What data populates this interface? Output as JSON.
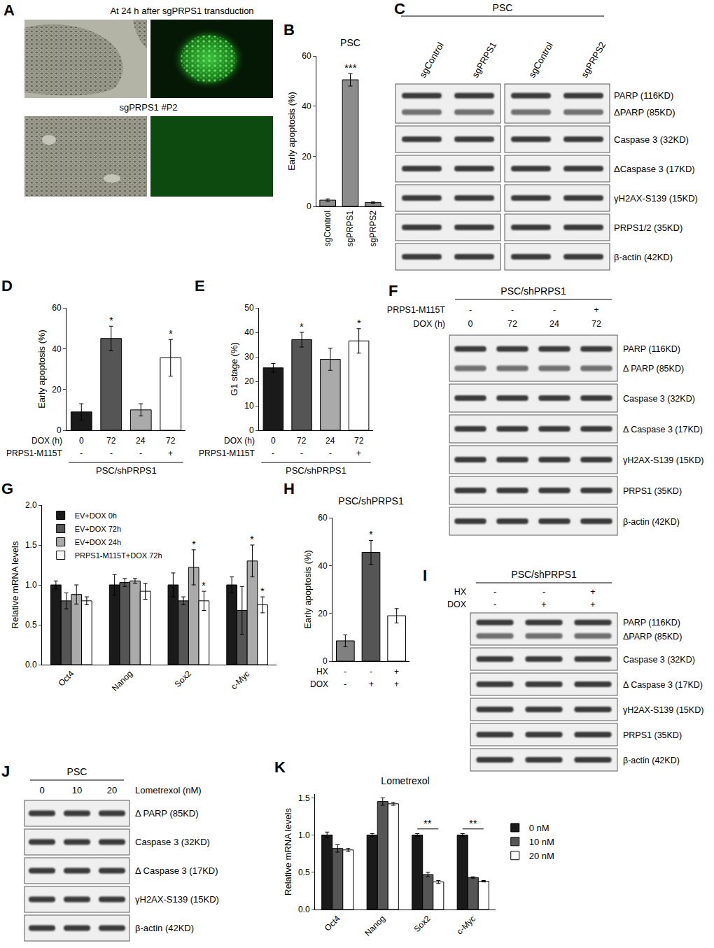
{
  "chart_data": [
    {
      "letter": "B",
      "type": "bar",
      "title": "PSC",
      "y_label": "Early apoptosis (%)",
      "categories": [
        "sgControl",
        "sgPRPS1",
        "sgPRPS2"
      ],
      "values": [
        2.5,
        50.5,
        1.5
      ],
      "errors": [
        0.5,
        2.5,
        0.3
      ],
      "colors": [
        "#8c8c8c",
        "#8c8c8c",
        "#8c8c8c"
      ],
      "significance": [
        null,
        "***",
        null
      ],
      "ylim": [
        0,
        60
      ],
      "yticks": [
        0,
        20,
        40,
        60
      ]
    },
    {
      "letter": "D",
      "type": "bar",
      "y_label": "Early apoptosis (%)",
      "x_rows": [
        {
          "label": "DOX (h)",
          "values": [
            "0",
            "72",
            "24",
            "72"
          ]
        },
        {
          "label": "PRPS1-M115T",
          "values": [
            "-",
            "-",
            "-",
            "+"
          ]
        }
      ],
      "group_label": "PSC/shPRPS1",
      "values": [
        9,
        45,
        10,
        35.5
      ],
      "errors": [
        4,
        6,
        3,
        9
      ],
      "colors": [
        "#1a1a1a",
        "#555555",
        "#aaaaaa",
        "#ffffff"
      ],
      "significance": [
        null,
        "*",
        null,
        "*"
      ],
      "ylim": [
        0,
        60
      ],
      "yticks": [
        0,
        20,
        40,
        60
      ],
      "tick_labels": "y"
    },
    {
      "letter": "E",
      "type": "bar",
      "y_label": "G1 stage (%)",
      "x_rows": [
        {
          "label": "DOX (h)",
          "values": [
            "0",
            "72",
            "24",
            "72"
          ]
        },
        {
          "label": "PRPS1-M115T",
          "values": [
            "-",
            "-",
            "-",
            "+"
          ]
        }
      ],
      "group_label": "PSC/shPRPS1",
      "values": [
        25.5,
        37,
        29,
        36.5
      ],
      "errors": [
        1.8,
        3,
        4.5,
        5
      ],
      "colors": [
        "#1a1a1a",
        "#555555",
        "#aaaaaa",
        "#ffffff"
      ],
      "significance": [
        null,
        "*",
        null,
        "*"
      ],
      "ylim": [
        0,
        50
      ],
      "yticks": [
        0,
        10,
        20,
        30,
        40,
        50
      ],
      "tick_labels": "y"
    },
    {
      "letter": "G",
      "type": "bar",
      "y_label": "Relative mRNA levels",
      "categories": [
        "Oct4",
        "Nanog",
        "Sox2",
        "c-Myc"
      ],
      "series": [
        {
          "name": "EV+DOX 0h",
          "color": "#1a1a1a",
          "values": [
            1.0,
            1.0,
            1.0,
            1.0
          ],
          "errors": [
            0.05,
            0.13,
            0.15,
            0.1
          ]
        },
        {
          "name": "EV+DOX 72h",
          "color": "#555555",
          "values": [
            0.8,
            1.03,
            0.8,
            0.68
          ],
          "errors": [
            0.1,
            0.05,
            0.05,
            0.3
          ]
        },
        {
          "name": "EV+DOX 24h",
          "color": "#aaaaaa",
          "values": [
            0.88,
            1.05,
            1.22,
            1.3
          ],
          "errors": [
            0.12,
            0.03,
            0.22,
            0.2
          ],
          "significance": [
            null,
            null,
            "*",
            "*"
          ]
        },
        {
          "name": "PRPS1-M115T+DOX 72h",
          "color": "#ffffff",
          "values": [
            0.8,
            0.92,
            0.8,
            0.75
          ],
          "errors": [
            0.05,
            0.1,
            0.12,
            0.1
          ],
          "significance": [
            null,
            null,
            "*",
            "*"
          ]
        }
      ],
      "ylim": [
        0,
        2
      ],
      "yticks": [
        {
          "value": 0,
          "label": "0.0"
        },
        {
          "value": 0.5,
          "label": "0.5"
        },
        {
          "value": 1,
          "label": "1.0"
        },
        {
          "value": 1.5,
          "label": "1.5"
        },
        {
          "value": 2,
          "label": "2.0"
        }
      ],
      "legend": "top-left"
    },
    {
      "letter": "H",
      "type": "bar",
      "title": "PSC/shPRPS1",
      "y_label": "Early apoptosis (%)",
      "x_rows": [
        {
          "label": "HX",
          "values": [
            "-",
            "-",
            "+"
          ]
        },
        {
          "label": "DOX",
          "values": [
            "-",
            "+",
            "+"
          ]
        }
      ],
      "values": [
        8.5,
        45.5,
        19
      ],
      "errors": [
        2.5,
        5,
        3
      ],
      "colors": [
        "#808080",
        "#555555",
        "#ffffff"
      ],
      "significance": [
        null,
        "*",
        null
      ],
      "ylim": [
        0,
        60
      ],
      "yticks": [
        0,
        20,
        40,
        60
      ],
      "tick_labels": "y"
    },
    {
      "letter": "K",
      "type": "bar",
      "title": "Lometrexol",
      "y_label": "Relative mRNA levels",
      "categories": [
        "Oct4",
        "Nanog",
        "Sox2",
        "c-Myc"
      ],
      "series": [
        {
          "name": "0 nM",
          "color": "#1a1a1a",
          "values": [
            1.0,
            1.0,
            1.0,
            1.0
          ],
          "errors": [
            0.04,
            0.02,
            0.02,
            0.02
          ]
        },
        {
          "name": "10 nM",
          "color": "#555555",
          "values": [
            0.82,
            1.45,
            0.47,
            0.43
          ],
          "errors": [
            0.05,
            0.05,
            0.03,
            0.01
          ]
        },
        {
          "name": "20 nM",
          "color": "#ffffff",
          "values": [
            0.8,
            1.42,
            0.37,
            0.38
          ],
          "errors": [
            0.02,
            0.02,
            0.02,
            0.01
          ]
        }
      ],
      "comparisons": [
        {
          "series": [
            "0 nM",
            "20 nM"
          ],
          "labels": [
            null,
            null,
            "**",
            "**"
          ]
        }
      ],
      "ylim": [
        0,
        1.55
      ],
      "yticks": [
        {
          "value": 0,
          "label": "0.0"
        },
        {
          "value": 0.5,
          "label": "0.5"
        },
        {
          "value": 1,
          "label": "1.0"
        },
        {
          "value": 1.5,
          "label": "1.5"
        }
      ],
      "legend": "right"
    }
  ],
  "images": {
    "letter": "A",
    "image_titles": [
      "At 24 h after sgPRPS1 transduction",
      "sgPRPS1 #P2"
    ]
  },
  "blots": [
    {
      "letter": "C",
      "header": "PSC",
      "columns": [
        [
          "sgControl",
          "sgPRPS1"
        ],
        [
          "sgControl",
          "sgPRPS2"
        ]
      ],
      "rows": [
        [
          "PARP (116KD)",
          "ΔPARP (85KD)"
        ],
        [
          "Caspase 3 (32KD)"
        ],
        [
          "ΔCaspase 3 (17KD)"
        ],
        [
          "γH2AX-S139 (15KD)"
        ],
        [
          "PRPS1/2 (35KD)"
        ],
        [
          "β-actin (42KD)"
        ]
      ]
    },
    {
      "letter": "F",
      "header": "PSC/shPRPS1",
      "column_rows": [
        {
          "label": "PRPS1-M115T",
          "values": [
            "-",
            "-",
            "-",
            "+"
          ]
        },
        {
          "label": "DOX (h)",
          "values": [
            "0",
            "72",
            "24",
            "72"
          ]
        }
      ],
      "rows": [
        [
          "PARP (116KD)",
          "Δ PARP (85KD)"
        ],
        [
          "Caspase 3 (32KD)"
        ],
        [
          "Δ Caspase 3 (17KD)"
        ],
        [
          "γH2AX-S139 (15KD)"
        ],
        [
          "PRPS1 (35KD)"
        ],
        [
          "β-actin (42KD)"
        ]
      ]
    },
    {
      "letter": "I",
      "header": "PSC/shPRPS1",
      "column_rows": [
        {
          "label": "HX",
          "values": [
            "-",
            "-",
            "+"
          ]
        },
        {
          "label": "DOX",
          "values": [
            "-",
            "+",
            "+"
          ]
        }
      ],
      "rows": [
        [
          "PARP (116KD)",
          "ΔPARP (85KD)"
        ],
        [
          "Caspase 3 (32KD)"
        ],
        [
          "Δ Caspase 3 (17KD)"
        ],
        [
          "γH2AX-S139 (15KD)"
        ],
        [
          "PRPS1 (35KD)"
        ],
        [
          "β-actin (42KD)"
        ]
      ]
    },
    {
      "letter": "J",
      "header": "PSC",
      "column_rows": [
        {
          "values": [
            "0",
            "10",
            "20"
          ],
          "trailing_label": "Lometrexol (nM)"
        }
      ],
      "rows": [
        [
          "Δ PARP (85KD)"
        ],
        [
          "Caspase 3 (32KD)"
        ],
        [
          "Δ Caspase 3 (17KD)"
        ],
        [
          "γH2AX-S139 (15KD)"
        ],
        [
          "β-actin (42KD)"
        ]
      ]
    }
  ]
}
